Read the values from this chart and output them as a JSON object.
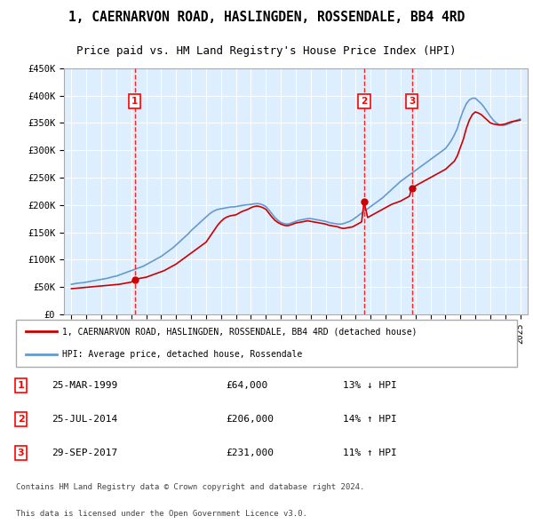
{
  "title": "1, CAERNARVON ROAD, HASLINGDEN, ROSSENDALE, BB4 4RD",
  "subtitle": "Price paid vs. HM Land Registry's House Price Index (HPI)",
  "legend_line1": "1, CAERNARVON ROAD, HASLINGDEN, ROSSENDALE, BB4 4RD (detached house)",
  "legend_line2": "HPI: Average price, detached house, Rossendale",
  "footer1": "Contains HM Land Registry data © Crown copyright and database right 2024.",
  "footer2": "This data is licensed under the Open Government Licence v3.0.",
  "sales": [
    {
      "num": 1,
      "date": "25-MAR-1999",
      "price": 64000,
      "hpi_pct": "13%",
      "hpi_dir": "↓"
    },
    {
      "num": 2,
      "date": "25-JUL-2014",
      "price": 206000,
      "hpi_pct": "14%",
      "hpi_dir": "↑"
    },
    {
      "num": 3,
      "date": "29-SEP-2017",
      "price": 231000,
      "hpi_pct": "11%",
      "hpi_dir": "↑"
    }
  ],
  "sale_years": [
    1999.23,
    2014.56,
    2017.75
  ],
  "sale_prices": [
    64000,
    206000,
    231000
  ],
  "property_color": "#cc0000",
  "hpi_color": "#6699cc",
  "background_color": "#ddeeff",
  "plot_bg": "#ddeeff",
  "ylim": [
    0,
    450000
  ],
  "xlim": [
    1994.5,
    2025.5
  ],
  "yticks": [
    0,
    50000,
    100000,
    150000,
    200000,
    250000,
    300000,
    350000,
    400000,
    450000
  ],
  "xticks": [
    1995,
    1996,
    1997,
    1998,
    1999,
    2000,
    2001,
    2002,
    2003,
    2004,
    2005,
    2006,
    2007,
    2008,
    2009,
    2010,
    2011,
    2012,
    2013,
    2014,
    2015,
    2016,
    2017,
    2018,
    2019,
    2020,
    2021,
    2022,
    2023,
    2024,
    2025
  ],
  "property_x": [
    1995.0,
    1995.2,
    1995.4,
    1995.6,
    1995.8,
    1996.0,
    1996.2,
    1996.4,
    1996.6,
    1996.8,
    1997.0,
    1997.2,
    1997.4,
    1997.6,
    1997.8,
    1998.0,
    1998.2,
    1998.4,
    1998.6,
    1998.8,
    1999.0,
    1999.23,
    1999.4,
    1999.6,
    1999.8,
    2000.0,
    2000.2,
    2000.4,
    2000.6,
    2000.8,
    2001.0,
    2001.2,
    2001.4,
    2001.6,
    2001.8,
    2002.0,
    2002.2,
    2002.4,
    2002.6,
    2002.8,
    2003.0,
    2003.2,
    2003.4,
    2003.6,
    2003.8,
    2004.0,
    2004.2,
    2004.4,
    2004.6,
    2004.8,
    2005.0,
    2005.2,
    2005.4,
    2005.6,
    2005.8,
    2006.0,
    2006.2,
    2006.4,
    2006.6,
    2006.8,
    2007.0,
    2007.2,
    2007.4,
    2007.6,
    2007.8,
    2008.0,
    2008.2,
    2008.4,
    2008.6,
    2008.8,
    2009.0,
    2009.2,
    2009.4,
    2009.6,
    2009.8,
    2010.0,
    2010.2,
    2010.4,
    2010.6,
    2010.8,
    2011.0,
    2011.2,
    2011.4,
    2011.6,
    2011.8,
    2012.0,
    2012.2,
    2012.4,
    2012.6,
    2012.8,
    2013.0,
    2013.2,
    2013.4,
    2013.6,
    2013.8,
    2014.0,
    2014.2,
    2014.4,
    2014.56,
    2014.8,
    2015.0,
    2015.2,
    2015.4,
    2015.6,
    2015.8,
    2016.0,
    2016.2,
    2016.4,
    2016.6,
    2016.8,
    2017.0,
    2017.2,
    2017.4,
    2017.6,
    2017.75,
    2018.0,
    2018.2,
    2018.4,
    2018.6,
    2018.8,
    2019.0,
    2019.2,
    2019.4,
    2019.6,
    2019.8,
    2020.0,
    2020.2,
    2020.4,
    2020.6,
    2020.8,
    2021.0,
    2021.2,
    2021.4,
    2021.6,
    2021.8,
    2022.0,
    2022.2,
    2022.4,
    2022.6,
    2022.8,
    2023.0,
    2023.2,
    2023.4,
    2023.6,
    2023.8,
    2024.0,
    2024.2,
    2024.4,
    2024.6,
    2024.8,
    2025.0
  ],
  "property_y": [
    47000,
    47500,
    48000,
    48500,
    49000,
    49500,
    50000,
    50500,
    51000,
    51500,
    52000,
    52500,
    53000,
    53500,
    54000,
    54500,
    55000,
    56000,
    57000,
    58000,
    59000,
    64000,
    65000,
    66000,
    67000,
    68000,
    70000,
    72000,
    74000,
    76000,
    78000,
    80000,
    83000,
    86000,
    89000,
    92000,
    96000,
    100000,
    104000,
    108000,
    112000,
    116000,
    120000,
    124000,
    128000,
    132000,
    140000,
    148000,
    156000,
    164000,
    170000,
    175000,
    178000,
    180000,
    181000,
    182000,
    185000,
    188000,
    190000,
    192000,
    195000,
    197000,
    198000,
    197000,
    195000,
    192000,
    185000,
    178000,
    172000,
    168000,
    165000,
    163000,
    162000,
    163000,
    165000,
    167000,
    168000,
    169000,
    170000,
    171000,
    170000,
    169000,
    168000,
    167000,
    166000,
    165000,
    163000,
    162000,
    161000,
    160000,
    158000,
    157000,
    158000,
    159000,
    160000,
    163000,
    166000,
    169000,
    206000,
    177000,
    180000,
    183000,
    186000,
    189000,
    192000,
    195000,
    198000,
    201000,
    203000,
    205000,
    207000,
    210000,
    213000,
    216000,
    231000,
    235000,
    238000,
    241000,
    244000,
    247000,
    250000,
    253000,
    256000,
    259000,
    262000,
    265000,
    270000,
    275000,
    280000,
    290000,
    305000,
    320000,
    340000,
    355000,
    365000,
    370000,
    368000,
    365000,
    360000,
    355000,
    350000,
    348000,
    347000,
    346000,
    347000,
    348000,
    350000,
    352000,
    353000,
    354000,
    355000
  ],
  "hpi_x": [
    1995.0,
    1995.2,
    1995.4,
    1995.6,
    1995.8,
    1996.0,
    1996.2,
    1996.4,
    1996.6,
    1996.8,
    1997.0,
    1997.2,
    1997.4,
    1997.6,
    1997.8,
    1998.0,
    1998.2,
    1998.4,
    1998.6,
    1998.8,
    1999.0,
    1999.2,
    1999.4,
    1999.6,
    1999.8,
    2000.0,
    2000.2,
    2000.4,
    2000.6,
    2000.8,
    2001.0,
    2001.2,
    2001.4,
    2001.6,
    2001.8,
    2002.0,
    2002.2,
    2002.4,
    2002.6,
    2002.8,
    2003.0,
    2003.2,
    2003.4,
    2003.6,
    2003.8,
    2004.0,
    2004.2,
    2004.4,
    2004.6,
    2004.8,
    2005.0,
    2005.2,
    2005.4,
    2005.6,
    2005.8,
    2006.0,
    2006.2,
    2006.4,
    2006.6,
    2006.8,
    2007.0,
    2007.2,
    2007.4,
    2007.6,
    2007.8,
    2008.0,
    2008.2,
    2008.4,
    2008.6,
    2008.8,
    2009.0,
    2009.2,
    2009.4,
    2009.6,
    2009.8,
    2010.0,
    2010.2,
    2010.4,
    2010.6,
    2010.8,
    2011.0,
    2011.2,
    2011.4,
    2011.6,
    2011.8,
    2012.0,
    2012.2,
    2012.4,
    2012.6,
    2012.8,
    2013.0,
    2013.2,
    2013.4,
    2013.6,
    2013.8,
    2014.0,
    2014.2,
    2014.4,
    2014.6,
    2014.8,
    2015.0,
    2015.2,
    2015.4,
    2015.6,
    2015.8,
    2016.0,
    2016.2,
    2016.4,
    2016.6,
    2016.8,
    2017.0,
    2017.2,
    2017.4,
    2017.6,
    2017.8,
    2018.0,
    2018.2,
    2018.4,
    2018.6,
    2018.8,
    2019.0,
    2019.2,
    2019.4,
    2019.6,
    2019.8,
    2020.0,
    2020.2,
    2020.4,
    2020.6,
    2020.8,
    2021.0,
    2021.2,
    2021.4,
    2021.6,
    2021.8,
    2022.0,
    2022.2,
    2022.4,
    2022.6,
    2022.8,
    2023.0,
    2023.2,
    2023.4,
    2023.6,
    2023.8,
    2024.0,
    2024.2,
    2024.4,
    2024.6,
    2024.8,
    2025.0
  ],
  "hpi_y": [
    55000,
    56000,
    57000,
    57500,
    58000,
    59000,
    60000,
    61000,
    62000,
    63000,
    64000,
    65000,
    66000,
    67500,
    69000,
    70000,
    72000,
    74000,
    76000,
    78000,
    80000,
    82000,
    84000,
    86000,
    88000,
    91000,
    94000,
    97000,
    100000,
    103000,
    106000,
    110000,
    114000,
    118000,
    122000,
    127000,
    132000,
    137000,
    142000,
    147000,
    153000,
    158000,
    163000,
    168000,
    173000,
    178000,
    183000,
    187000,
    190000,
    192000,
    193000,
    194000,
    195000,
    196000,
    196500,
    197000,
    198000,
    199000,
    200000,
    200500,
    201000,
    202000,
    202500,
    202000,
    200000,
    197000,
    191000,
    184000,
    177000,
    172000,
    168000,
    166000,
    165000,
    166000,
    168000,
    170000,
    172000,
    173000,
    174000,
    175000,
    175000,
    174000,
    173000,
    172000,
    171000,
    170000,
    168000,
    167000,
    166000,
    165000,
    165000,
    166000,
    168000,
    170000,
    173000,
    177000,
    181000,
    185000,
    189000,
    193000,
    197000,
    201000,
    205000,
    209000,
    213000,
    218000,
    223000,
    228000,
    233000,
    238000,
    243000,
    247000,
    251000,
    255000,
    259000,
    263000,
    267000,
    271000,
    275000,
    279000,
    283000,
    287000,
    291000,
    295000,
    299000,
    303000,
    310000,
    318000,
    328000,
    340000,
    358000,
    373000,
    385000,
    392000,
    395000,
    395000,
    390000,
    385000,
    378000,
    370000,
    362000,
    355000,
    350000,
    347000,
    345000,
    346000,
    348000,
    350000,
    353000,
    355000,
    357000
  ]
}
